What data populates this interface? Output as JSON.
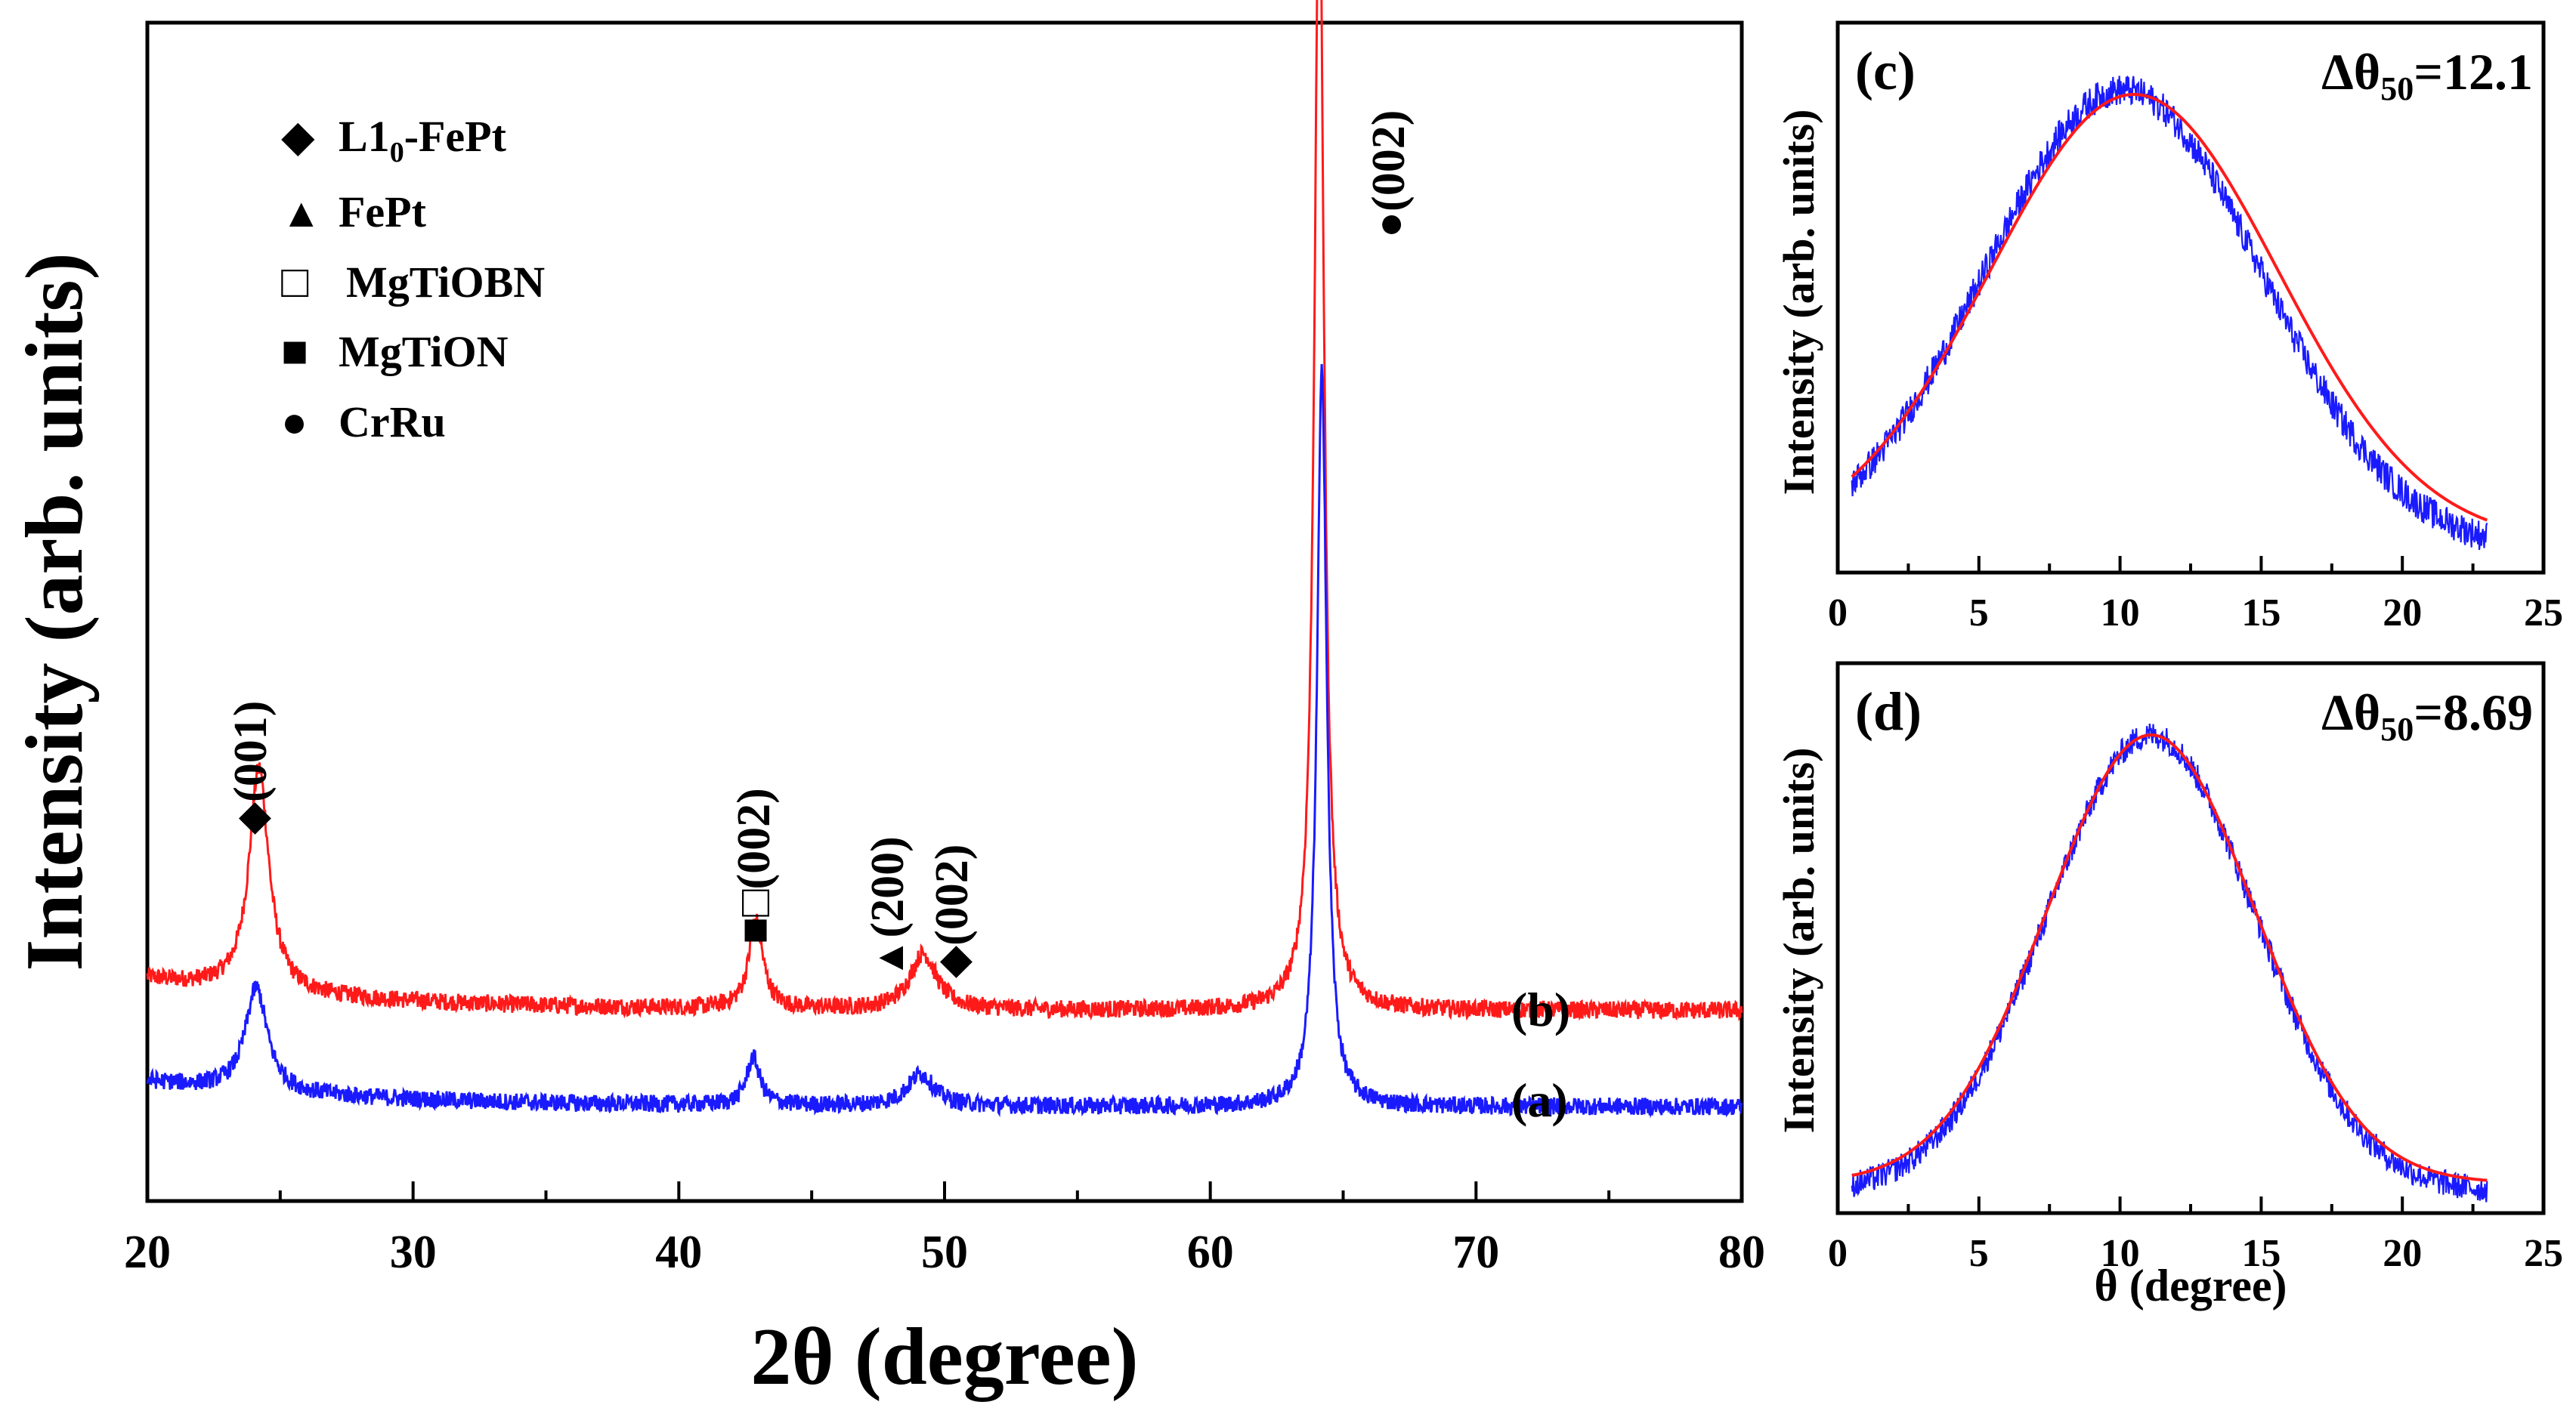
{
  "colors": {
    "series_b": "#ff1a1a",
    "series_a": "#1a1aff",
    "fit": "#ff1a1a",
    "raw": "#1a1aff",
    "axis": "#000000"
  },
  "chart_data": [
    {
      "id": "main-xrd",
      "type": "line",
      "xlabel": "2θ (degree)",
      "ylabel": "Intensity (arb. units)",
      "xlim": [
        20,
        80
      ],
      "xticks": [
        "20",
        "30",
        "40",
        "50",
        "60",
        "70",
        "80"
      ],
      "series": [
        {
          "name": "(b)",
          "color": "#ff1a1a",
          "baseline": 0.2,
          "peaks": [
            {
              "x": 24.2,
              "h": 0.28,
              "w": 0.45
            },
            {
              "x": 42.9,
              "h": 0.11,
              "w": 0.32
            },
            {
              "x": 49.2,
              "h": 0.07,
              "w": 0.6
            },
            {
              "x": 64.1,
              "h": 1.45,
              "w": 0.22
            }
          ]
        },
        {
          "name": "(a)",
          "color": "#1a1aff",
          "baseline": 0.08,
          "peaks": [
            {
              "x": 24.1,
              "h": 0.13,
              "w": 0.5
            },
            {
              "x": 42.8,
              "h": 0.06,
              "w": 0.3
            },
            {
              "x": 49.1,
              "h": 0.04,
              "w": 0.6
            },
            {
              "x": 64.2,
              "h": 0.92,
              "w": 0.22
            }
          ]
        }
      ],
      "legend": {
        "items": [
          {
            "symbol": "◆",
            "label": "L1",
            "sub": "0",
            "label_end": "-FePt"
          },
          {
            "symbol": "▲",
            "label": "FePt",
            "sub": "",
            "label_end": ""
          },
          {
            "symbol": "□",
            "label": "MgTiOBN",
            "sub": "",
            "label_end": ""
          },
          {
            "symbol": "■",
            "label": "MgTiON",
            "sub": "",
            "label_end": ""
          },
          {
            "symbol": "●",
            "label": "CrRu",
            "sub": "",
            "label_end": ""
          }
        ]
      },
      "annotations": [
        {
          "symbols": "◆",
          "text": "(001)",
          "x": 24.2
        },
        {
          "symbols": "■□",
          "text": "(002)",
          "x": 42.9
        },
        {
          "symbols": "▲",
          "text": "(200)",
          "x": 48.0
        },
        {
          "symbols": "◆",
          "text": "(002)",
          "x": 50.8
        },
        {
          "symbols": "●",
          "text": "(002)",
          "x": 66.3
        }
      ],
      "series_labels": [
        "(b)",
        "(a)"
      ]
    },
    {
      "id": "rocking-c",
      "type": "line",
      "panel_label": "(c)",
      "annotation": "Δθ",
      "annotation_sub": "50",
      "annotation_value": "=12.1",
      "ylabel": "Intensity (arb. units)",
      "xlabel": "",
      "xlim": [
        0,
        25
      ],
      "xticks": [
        "0",
        "5",
        "10",
        "15",
        "20",
        "25"
      ],
      "x_range": [
        0.5,
        23
      ],
      "fit": {
        "center": 10.5,
        "sigma": 5.1,
        "amplitude": 1.0
      },
      "raw": {
        "center": 10.1,
        "sigma": 4.9,
        "amplitude": 1.03,
        "noise": 0.035
      }
    },
    {
      "id": "rocking-d",
      "type": "line",
      "panel_label": "(d)",
      "annotation": "Δθ",
      "annotation_sub": "50",
      "annotation_value": "=8.69",
      "ylabel": "Intensity (arb. units)",
      "xlabel": "θ (degree)",
      "xlim": [
        0,
        25
      ],
      "xticks": [
        "0",
        "5",
        "10",
        "15",
        "20",
        "25"
      ],
      "x_range": [
        0.5,
        23
      ],
      "fit": {
        "center": 11.1,
        "sigma": 3.7,
        "amplitude": 1.0
      },
      "raw": {
        "center": 11.1,
        "sigma": 3.7,
        "amplitude": 1.02,
        "noise": 0.03
      }
    }
  ]
}
